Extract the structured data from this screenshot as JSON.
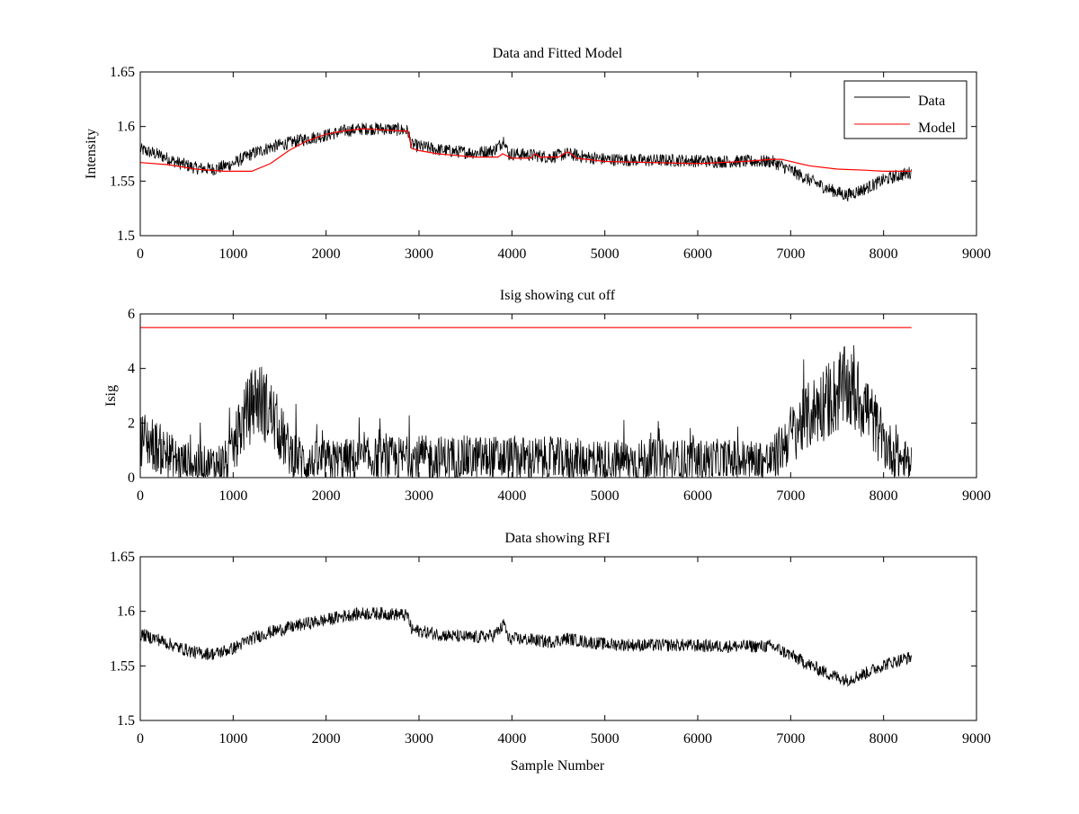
{
  "figure": {
    "background": "#ffffff"
  },
  "chart_data": [
    {
      "type": "line",
      "title": "Data and Fitted Model",
      "xlabel": "",
      "ylabel": "Intensity",
      "xlim": [
        0,
        9000
      ],
      "ylim": [
        1.5,
        1.65
      ],
      "xticks": [
        0,
        1000,
        2000,
        3000,
        4000,
        5000,
        6000,
        7000,
        8000,
        9000
      ],
      "yticks": [
        1.5,
        1.55,
        1.6,
        1.65
      ],
      "ytick_labels": [
        "1.5",
        "1.55",
        "1.6",
        "1.65"
      ],
      "grid": false,
      "legend": {
        "placement": "top-right",
        "entries": [
          "Data",
          "Model"
        ]
      },
      "series": [
        {
          "name": "Data",
          "color": "#000000",
          "style": "noisy",
          "noise": 0.006,
          "x": [
            0,
            200,
            400,
            600,
            800,
            1000,
            1200,
            1400,
            1600,
            1800,
            2000,
            2200,
            2400,
            2600,
            2800,
            2880,
            2920,
            3000,
            3200,
            3400,
            3600,
            3800,
            3880,
            3920,
            3960,
            4000,
            4200,
            4400,
            4600,
            4800,
            5000,
            5400,
            5800,
            6200,
            6600,
            6800,
            7000,
            7200,
            7400,
            7600,
            7800,
            8000,
            8200,
            8300
          ],
          "y": [
            1.579,
            1.574,
            1.567,
            1.562,
            1.561,
            1.566,
            1.575,
            1.581,
            1.585,
            1.589,
            1.592,
            1.596,
            1.598,
            1.598,
            1.597,
            1.596,
            1.583,
            1.582,
            1.579,
            1.577,
            1.576,
            1.578,
            1.584,
            1.589,
            1.574,
            1.575,
            1.574,
            1.572,
            1.575,
            1.572,
            1.57,
            1.569,
            1.569,
            1.568,
            1.568,
            1.568,
            1.56,
            1.551,
            1.543,
            1.537,
            1.543,
            1.551,
            1.556,
            1.558
          ]
        },
        {
          "name": "Model",
          "color": "#ff0000",
          "style": "line",
          "noise": 0,
          "x": [
            0,
            300,
            600,
            900,
            1000,
            1200,
            1400,
            1600,
            1800,
            2000,
            2200,
            2400,
            2600,
            2800,
            2880,
            2920,
            3000,
            3200,
            3600,
            3850,
            3900,
            3950,
            4000,
            4200,
            4250,
            4300,
            4500,
            4600,
            4700,
            5000,
            5500,
            6000,
            6500,
            6800,
            6900,
            7200,
            7500,
            7800,
            8000,
            8300
          ],
          "y": [
            1.567,
            1.565,
            1.561,
            1.559,
            1.559,
            1.559,
            1.566,
            1.578,
            1.587,
            1.593,
            1.596,
            1.598,
            1.597,
            1.596,
            1.596,
            1.58,
            1.578,
            1.575,
            1.572,
            1.572,
            1.575,
            1.573,
            1.571,
            1.571,
            1.575,
            1.572,
            1.572,
            1.577,
            1.571,
            1.568,
            1.567,
            1.566,
            1.568,
            1.57,
            1.57,
            1.564,
            1.561,
            1.56,
            1.559,
            1.559
          ]
        }
      ]
    },
    {
      "type": "line",
      "title": "Isig showing cut off",
      "xlabel": "",
      "ylabel": "Isig",
      "xlim": [
        0,
        9000
      ],
      "ylim": [
        0,
        6
      ],
      "xticks": [
        0,
        1000,
        2000,
        3000,
        4000,
        5000,
        6000,
        7000,
        8000,
        9000
      ],
      "yticks": [
        0,
        2,
        4,
        6
      ],
      "ytick_labels": [
        "0",
        "2",
        "4",
        "6"
      ],
      "grid": false,
      "series": [
        {
          "name": "",
          "color": "#000000",
          "style": "spiky",
          "noise": 1.0,
          "x": [
            0,
            150,
            400,
            700,
            950,
            1100,
            1250,
            1400,
            1600,
            1800,
            2000,
            3000,
            4000,
            5000,
            6000,
            6800,
            7000,
            7300,
            7600,
            7800,
            8000,
            8200,
            8300
          ],
          "y": [
            1.5,
            1.2,
            0.6,
            0.4,
            0.6,
            2.0,
            3.0,
            2.4,
            1.0,
            0.5,
            0.6,
            0.7,
            0.7,
            0.6,
            0.6,
            0.6,
            1.6,
            2.6,
            3.3,
            2.7,
            1.3,
            0.6,
            0.5
          ]
        },
        {
          "name": "",
          "color": "#ff0000",
          "style": "line",
          "noise": 0,
          "x": [
            0,
            8300
          ],
          "y": [
            5.5,
            5.5
          ]
        }
      ]
    },
    {
      "type": "line",
      "title": "Data showing RFI",
      "xlabel": "Sample Number",
      "ylabel": "",
      "xlim": [
        0,
        9000
      ],
      "ylim": [
        1.5,
        1.65
      ],
      "xticks": [
        0,
        1000,
        2000,
        3000,
        4000,
        5000,
        6000,
        7000,
        8000,
        9000
      ],
      "yticks": [
        1.5,
        1.55,
        1.6,
        1.65
      ],
      "ytick_labels": [
        "1.5",
        "1.55",
        "1.6",
        "1.65"
      ],
      "grid": false,
      "series": [
        {
          "name": "",
          "color": "#000000",
          "style": "noisy",
          "noise": 0.006,
          "x": [
            0,
            200,
            400,
            600,
            800,
            1000,
            1200,
            1400,
            1600,
            1800,
            2000,
            2200,
            2400,
            2600,
            2800,
            2880,
            2920,
            3000,
            3200,
            3400,
            3600,
            3800,
            3880,
            3920,
            3960,
            4000,
            4200,
            4400,
            4600,
            4800,
            5000,
            5400,
            5800,
            6200,
            6600,
            6800,
            7000,
            7200,
            7400,
            7600,
            7800,
            8000,
            8200,
            8300
          ],
          "y": [
            1.579,
            1.574,
            1.567,
            1.562,
            1.561,
            1.566,
            1.575,
            1.581,
            1.585,
            1.589,
            1.592,
            1.596,
            1.598,
            1.598,
            1.597,
            1.596,
            1.583,
            1.582,
            1.579,
            1.577,
            1.576,
            1.578,
            1.584,
            1.589,
            1.574,
            1.575,
            1.574,
            1.572,
            1.575,
            1.572,
            1.57,
            1.569,
            1.569,
            1.568,
            1.568,
            1.568,
            1.56,
            1.551,
            1.543,
            1.537,
            1.543,
            1.551,
            1.556,
            1.558
          ]
        }
      ]
    }
  ]
}
